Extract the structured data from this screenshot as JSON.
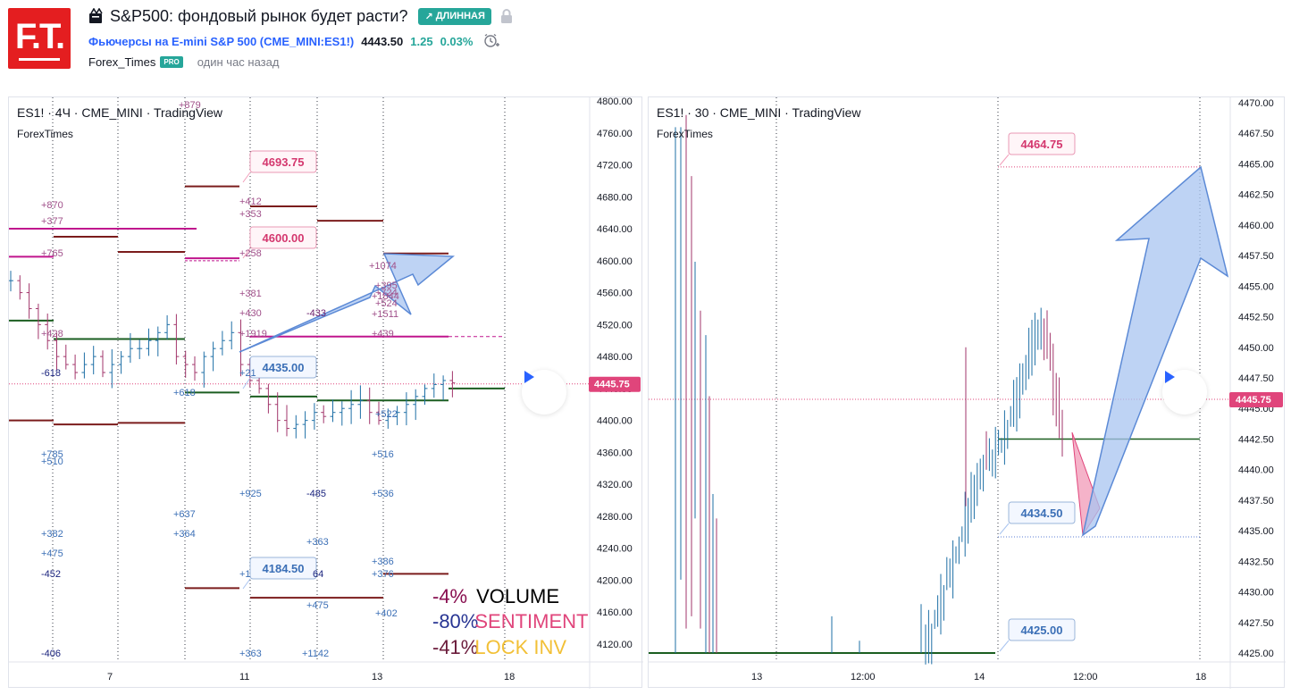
{
  "header": {
    "logo_text": "F.T.",
    "title": "S&P500: фондовый рынок будет расти?",
    "badge": "ДЛИННАЯ",
    "symbol": "Фьючерсы на E-mini S&P 500 (CME_MINI:ES1!)",
    "price": "4443.50",
    "change": "1.25",
    "change_pct": "0.03%",
    "author": "Forex_Times",
    "pro": "PRO",
    "time_ago": "один час назад"
  },
  "colors": {
    "brand_red": "#e41e20",
    "green": "#26a69a",
    "blue_link": "#2962ff",
    "pink": "#e0457b",
    "dark_red": "#7b1c1c",
    "dark_green": "#1b5e20",
    "magenta": "#c0158d",
    "arrow_blue": "#a8c4f0"
  },
  "left_chart": {
    "title": "ES1! · 4Ч · CME_MINI · TradingView",
    "sub": "ForexTimes",
    "price_axis": [
      "4800.00",
      "4760.00",
      "4720.00",
      "4680.00",
      "4640.00",
      "4600.00",
      "4560.00",
      "4520.00",
      "4480.00",
      "4440.00",
      "4400.00",
      "4360.00",
      "4320.00",
      "4280.00",
      "4240.00",
      "4200.00",
      "4160.00",
      "4120.00"
    ],
    "time_axis": [
      "7",
      "11",
      "13",
      "18"
    ],
    "last_price": "4445.75",
    "labels": {
      "l4693": "4693.75",
      "l4600": "4600.00",
      "l4435": "4435.00",
      "l4184": "4184.50"
    },
    "annotations": [
      "+879",
      "+870",
      "+377",
      "+765",
      "+412",
      "+353",
      "+258",
      "+381",
      "+430",
      "+1919",
      "+428",
      "-618",
      "+618",
      "+21",
      "-433",
      "+1074",
      "+395",
      "+724",
      "+1844",
      "+524",
      "+1511",
      "+439",
      "+522",
      "+516",
      "+785",
      "+510",
      "+925",
      "-485",
      "+536",
      "+637",
      "+364",
      "+382",
      "+363",
      "+475",
      "+386",
      "+376",
      "-452",
      "+1",
      "64",
      "+475",
      "+402",
      "-406",
      "+363",
      "+1142"
    ],
    "legend": [
      {
        "pct": "-4%",
        "label": "VOLUME"
      },
      {
        "pct": "-80%",
        "label": "SENTIMENT"
      },
      {
        "pct": "-41%",
        "label": "LOCK INV"
      }
    ]
  },
  "right_chart": {
    "title": "ES1! · 30 · CME_MINI · TradingView",
    "sub": "ForexTimes",
    "price_axis": [
      "4470.00",
      "4467.50",
      "4465.00",
      "4462.50",
      "4460.00",
      "4457.50",
      "4455.00",
      "4452.50",
      "4450.00",
      "4447.50",
      "4445.00",
      "4442.50",
      "4440.00",
      "4437.50",
      "4435.00",
      "4432.50",
      "4430.00",
      "4427.50",
      "4425.00"
    ],
    "time_axis": [
      "13",
      "12:00",
      "14",
      "12:00",
      "18"
    ],
    "last_price": "4445.75",
    "labels": {
      "l4464": "4464.75",
      "l4434": "4434.50",
      "l4425": "4425.00"
    }
  }
}
